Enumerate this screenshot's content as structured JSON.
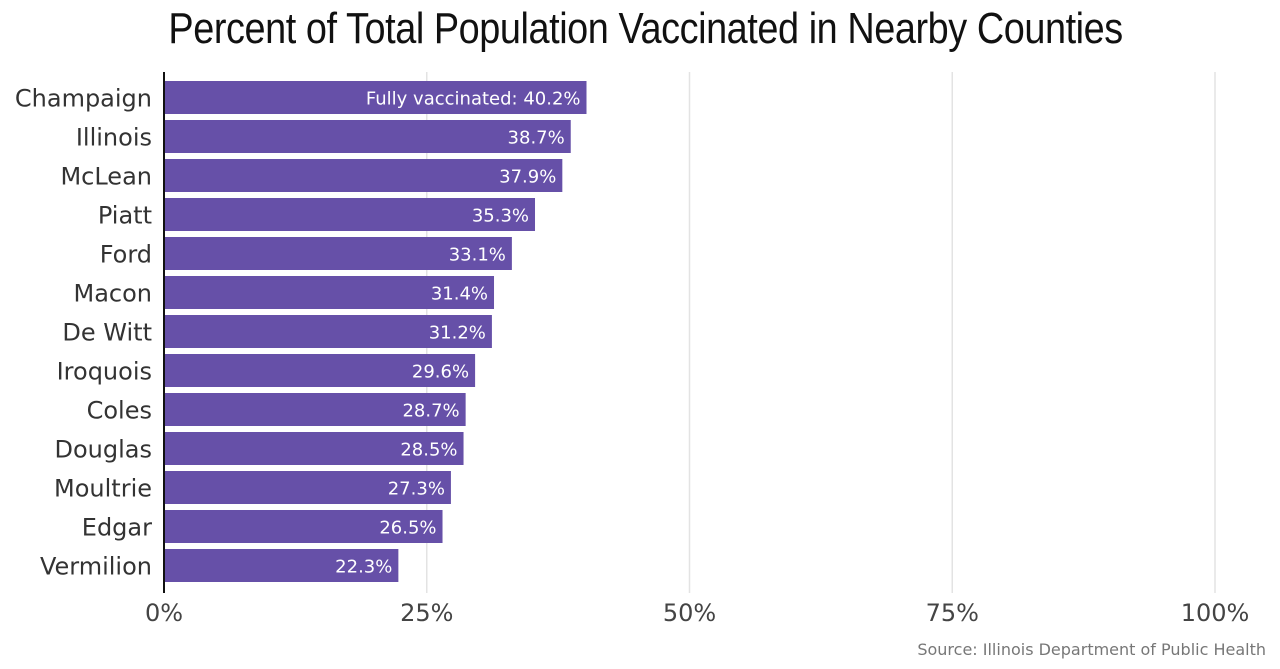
{
  "chart_data": {
    "type": "bar",
    "orientation": "horizontal",
    "title": "Percent of Total Population Vaccinated in Nearby Counties",
    "source": "Source: Illinois Department of Public Health",
    "categories": [
      "Champaign",
      "Illinois",
      "McLean",
      "Piatt",
      "Ford",
      "Macon",
      "De Witt",
      "Iroquois",
      "Coles",
      "Douglas",
      "Moultrie",
      "Edgar",
      "Vermilion"
    ],
    "values": [
      40.2,
      38.7,
      37.9,
      35.3,
      33.1,
      31.4,
      31.2,
      29.6,
      28.7,
      28.5,
      27.3,
      26.5,
      22.3
    ],
    "value_labels": [
      "Fully vaccinated: 40.2%",
      "38.7%",
      "37.9%",
      "35.3%",
      "33.1%",
      "31.4%",
      "31.2%",
      "29.6%",
      "28.7%",
      "28.5%",
      "27.3%",
      "26.5%",
      "22.3%"
    ],
    "xlim": [
      0,
      100
    ],
    "xticks": [
      0,
      25,
      50,
      75,
      100
    ],
    "xtick_labels": [
      "0%",
      "25%",
      "50%",
      "75%",
      "100%"
    ],
    "grid": true,
    "bar_color": "#6650a8"
  }
}
